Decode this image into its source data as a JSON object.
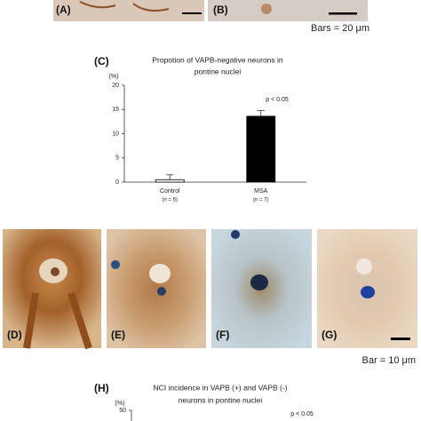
{
  "chart_data": [
    {
      "type": "bar",
      "panel": "(C)",
      "title": [
        "Propotion of VAPB-negative neurons in",
        "pontine nuclei"
      ],
      "y_unit": "(%)",
      "categories": [
        "Control",
        "MSA"
      ],
      "category_notes": [
        "(n = 5)",
        "(n = 7)"
      ],
      "series": [
        {
          "colors": [
            "#ffffff",
            "#000000"
          ],
          "values": [
            0.5,
            13.6
          ],
          "errors": [
            1.0,
            1.2
          ]
        }
      ],
      "ylim": [
        0,
        20
      ],
      "yticks": [
        0,
        5,
        10,
        15,
        20
      ],
      "annotation": "p < 0.05"
    },
    {
      "type": "bar",
      "panel": "(H)",
      "title": [
        "NCI incidence in VAPB (+) and VAPB (-)",
        "neurons in pontine nuclei"
      ],
      "y_unit": "(%)",
      "ylim": [
        0,
        50
      ],
      "yticks": [
        50
      ],
      "annotation": "p < 0.05"
    }
  ],
  "figure": {
    "top_panels": [
      "(A)",
      "(B)"
    ],
    "top_scale": "Bars = 20 μm",
    "image_panels": [
      "(D)",
      "(E)",
      "(F)",
      "(G)"
    ],
    "image_scale": "Bar = 10 μm"
  }
}
